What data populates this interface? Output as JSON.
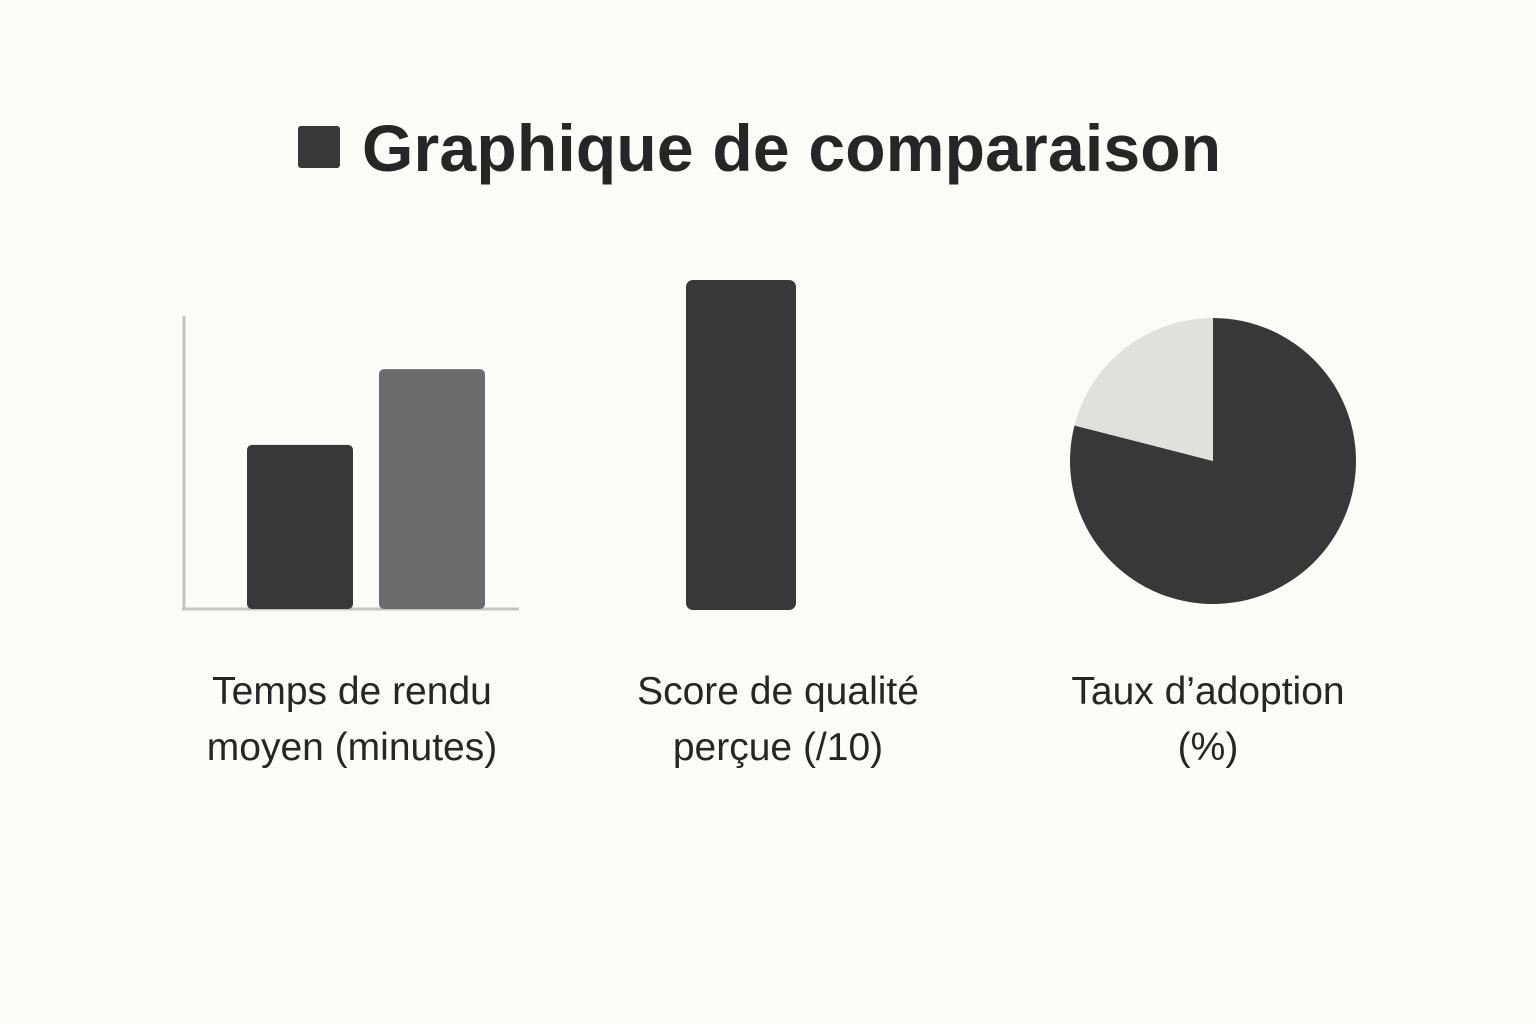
{
  "title": "Graphique de comparaison",
  "colors": {
    "background": "#fbfbf8",
    "dark": "#383838",
    "medium": "#6c6c6c",
    "light": "#e0e0dc",
    "axis": "#c4c4c4",
    "text": "#262626"
  },
  "chart_data": [
    {
      "type": "bar",
      "title_lines": [
        "Temps de rendu",
        "moyen (minutes)"
      ],
      "categories": [
        "",
        ""
      ],
      "values": [
        5.2,
        7.6
      ],
      "ylim": [
        0,
        9
      ],
      "grid": false,
      "axes": true
    },
    {
      "type": "bar",
      "title_lines": [
        "Score de qualité",
        "perçue (/10)"
      ],
      "categories": [
        ""
      ],
      "values": [
        10
      ],
      "ylim": [
        0,
        10
      ],
      "grid": false,
      "axes": false
    },
    {
      "type": "pie",
      "title_lines": [
        "Taux d’adoption",
        "(%)"
      ],
      "labels": [
        "",
        ""
      ],
      "values": [
        79,
        21
      ]
    }
  ]
}
